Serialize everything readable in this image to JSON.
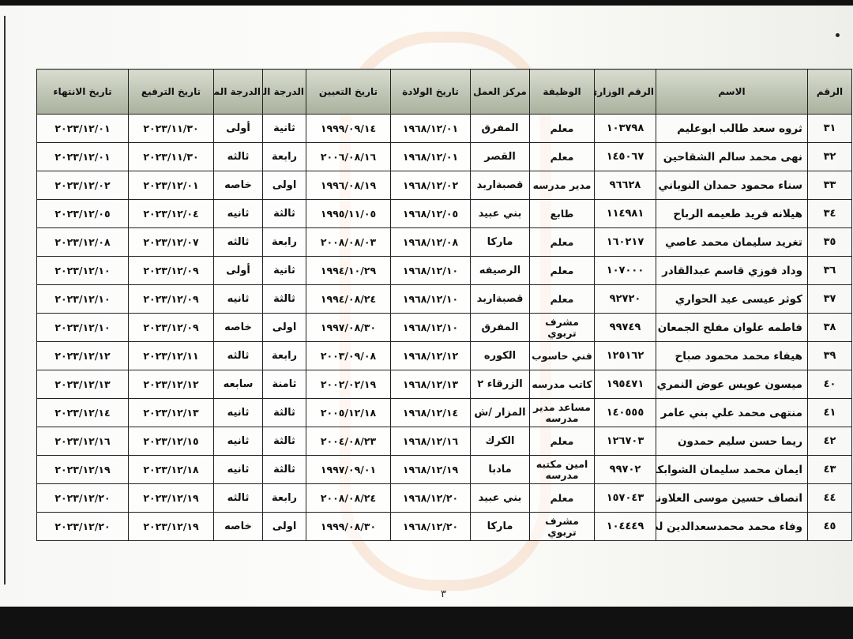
{
  "table": {
    "headers": [
      "الرقم",
      "الاسم",
      "الرقم الوزاري",
      "الوظيفة",
      "مركز العمل",
      "تاريخ الولادة",
      "تاريخ التعيين",
      "الدرجة الحالية",
      "الدرجة المستحقة",
      "تاريخ الترفيع",
      "تاريخ الانتهاء"
    ],
    "rows": [
      [
        "٣١",
        "ثروه سعد طالب ابوعليم",
        "١٠٣٧٩٨",
        "معلم",
        "المفرق",
        "١٩٦٨/١٢/٠١",
        "١٩٩٩/٠٩/١٤",
        "ثانية",
        "أولى",
        "٢٠٢٣/١١/٣٠",
        "٢٠٢٣/١٢/٠١"
      ],
      [
        "٣٢",
        "نهى محمد سالم الشقاحين",
        "١٤٥٠٦٧",
        "معلم",
        "القصر",
        "١٩٦٨/١٢/٠١",
        "٢٠٠٦/٠٨/١٦",
        "رابعة",
        "ثالثه",
        "٢٠٢٣/١١/٣٠",
        "٢٠٢٣/١٢/٠١"
      ],
      [
        "٣٣",
        "سناء محمود حمدان النوباني",
        "٩٦٦٢٨",
        "مدير مدرسه",
        "قصبةاربد",
        "١٩٦٨/١٢/٠٢",
        "١٩٩٦/٠٨/١٩",
        "اولى",
        "خاصه",
        "٢٠٢٣/١٢/٠١",
        "٢٠٢٣/١٢/٠٢"
      ],
      [
        "٣٤",
        "هيلانه فريد طعيمه الرباح",
        "١١٤٩٨١",
        "طابع",
        "بني عبيد",
        "١٩٦٨/١٢/٠٥",
        "١٩٩٥/١١/٠٥",
        "ثالثة",
        "ثانيه",
        "٢٠٢٣/١٢/٠٤",
        "٢٠٢٣/١٢/٠٥"
      ],
      [
        "٣٥",
        "تغريد سليمان محمد عاصي",
        "١٦٠٢١٧",
        "معلم",
        "ماركا",
        "١٩٦٨/١٢/٠٨",
        "٢٠٠٨/٠٨/٠٣",
        "رابعة",
        "ثالثه",
        "٢٠٢٣/١٢/٠٧",
        "٢٠٢٣/١٢/٠٨"
      ],
      [
        "٣٦",
        "وداد فوزي قاسم عبدالقادر",
        "١٠٧٠٠٠",
        "معلم",
        "الرصيفه",
        "١٩٦٨/١٢/١٠",
        "١٩٩٤/١٠/٢٩",
        "ثانية",
        "أولى",
        "٢٠٢٣/١٢/٠٩",
        "٢٠٢٣/١٢/١٠"
      ],
      [
        "٣٧",
        "كوثر عيسى عيد الحواري",
        "٩٢٧٢٠",
        "معلم",
        "قصبةاربد",
        "١٩٦٨/١٢/١٠",
        "١٩٩٤/٠٨/٢٤",
        "ثالثة",
        "ثانيه",
        "٢٠٢٣/١٢/٠٩",
        "٢٠٢٣/١٢/١٠"
      ],
      [
        "٣٨",
        "فاطمه علوان مفلح الجمعان",
        "٩٩٧٤٩",
        "مشرف تربوي",
        "المفرق",
        "١٩٦٨/١٢/١٠",
        "١٩٩٧/٠٨/٣٠",
        "اولى",
        "خاصه",
        "٢٠٢٣/١٢/٠٩",
        "٢٠٢٣/١٢/١٠"
      ],
      [
        "٣٩",
        "هيفاء محمد محمود صباح",
        "١٢٥١٦٢",
        "فني حاسوب",
        "الكوره",
        "١٩٦٨/١٢/١٢",
        "٢٠٠٣/٠٩/٠٨",
        "رابعة",
        "ثالثه",
        "٢٠٢٣/١٢/١١",
        "٢٠٢٣/١٢/١٢"
      ],
      [
        "٤٠",
        "ميسون عويس عوض النمري",
        "١٩٥٤٧١",
        "كاتب مدرسه",
        "الزرقاء ٢",
        "١٩٦٨/١٢/١٣",
        "٢٠٠٢/٠٢/١٩",
        "ثامنة",
        "سابعه",
        "٢٠٢٣/١٢/١٢",
        "٢٠٢٣/١٢/١٣"
      ],
      [
        "٤١",
        "منتهى محمد علي بني عامر",
        "١٤٠٥٥٥",
        "مساعد مدير مدرسه",
        "المزار /ش",
        "١٩٦٨/١٢/١٤",
        "٢٠٠٥/١٢/١٨",
        "ثالثة",
        "ثانيه",
        "٢٠٢٣/١٢/١٣",
        "٢٠٢٣/١٢/١٤"
      ],
      [
        "٤٢",
        "ريما حسن سليم حمدون",
        "١٢٦٧٠٣",
        "معلم",
        "الكرك",
        "١٩٦٨/١٢/١٦",
        "٢٠٠٤/٠٨/٢٣",
        "ثالثة",
        "ثانيه",
        "٢٠٢٣/١٢/١٥",
        "٢٠٢٣/١٢/١٦"
      ],
      [
        "٤٣",
        "ايمان محمد سليمان الشوابكه",
        "٩٩٧٠٢",
        "امين مكتبه مدرسه",
        "مادبا",
        "١٩٦٨/١٢/١٩",
        "١٩٩٧/٠٩/٠١",
        "ثالثة",
        "ثانيه",
        "٢٠٢٣/١٢/١٨",
        "٢٠٢٣/١٢/١٩"
      ],
      [
        "٤٤",
        "انصاف حسين موسى العلاونه",
        "١٥٧٠٤٣",
        "معلم",
        "بني عبيد",
        "١٩٦٨/١٢/٢٠",
        "٢٠٠٨/٠٨/٢٤",
        "رابعة",
        "ثالثه",
        "٢٠٢٣/١٢/١٩",
        "٢٠٢٣/١٢/٢٠"
      ],
      [
        "٤٥",
        "وفاء محمد محمدسعدالدين لصوي",
        "١٠٤٤٤٩",
        "مشرف تربوي",
        "ماركا",
        "١٩٦٨/١٢/٢٠",
        "١٩٩٩/٠٨/٣٠",
        "اولى",
        "خاصه",
        "٢٠٢٣/١٢/١٩",
        "٢٠٢٣/١٢/٢٠"
      ]
    ]
  },
  "page_number": "٣"
}
